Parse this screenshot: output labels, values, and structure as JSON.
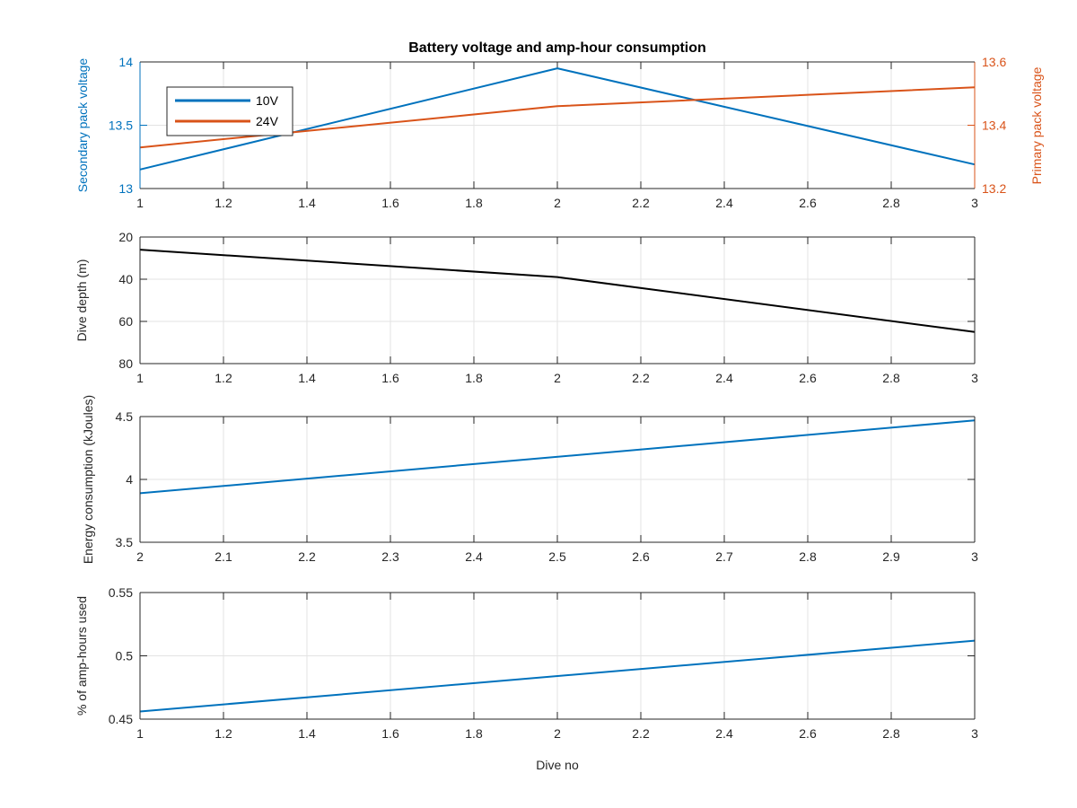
{
  "figure": {
    "title": "Battery voltage and amp-hour consumption",
    "xlabel": "Dive no"
  },
  "colors": {
    "blue": "#0072bd",
    "orange": "#d95319",
    "black": "#000000",
    "grid": "#e3e3e3",
    "axes": "#262626"
  },
  "chart_data": [
    {
      "type": "line",
      "title": "Battery voltage and amp-hour consumption",
      "xlim": [
        1,
        3
      ],
      "xticks": [
        "1",
        "1.2",
        "1.4",
        "1.6",
        "1.8",
        "2",
        "2.2",
        "2.4",
        "2.6",
        "2.8",
        "3"
      ],
      "grid": true,
      "legend": {
        "placement": "top-left",
        "entries": [
          "10V",
          "24V"
        ]
      },
      "y_left": {
        "label": "Secondary pack voltage",
        "lim": [
          13,
          14
        ],
        "ticks": [
          "13",
          "13.5",
          "14"
        ],
        "color": "#0072bd"
      },
      "y_right": {
        "label": "Primary pack voltage",
        "lim": [
          13.2,
          13.6
        ],
        "ticks": [
          "13.2",
          "13.4",
          "13.6"
        ],
        "color": "#d95319"
      },
      "series": [
        {
          "name": "10V",
          "axis": "left",
          "color": "#0072bd",
          "x": [
            1,
            2,
            3
          ],
          "y": [
            13.15,
            13.95,
            13.19
          ]
        },
        {
          "name": "24V",
          "axis": "right",
          "color": "#d95319",
          "x": [
            1,
            2,
            3
          ],
          "y": [
            13.33,
            13.46,
            13.52
          ]
        }
      ]
    },
    {
      "type": "line",
      "xlim": [
        1,
        3
      ],
      "xticks": [
        "1",
        "1.2",
        "1.4",
        "1.6",
        "1.8",
        "2",
        "2.2",
        "2.4",
        "2.6",
        "2.8",
        "3"
      ],
      "grid": true,
      "y_left": {
        "label": "Dive depth (m)",
        "lim": [
          20,
          80
        ],
        "reversed": true,
        "ticks": [
          "20",
          "40",
          "60",
          "80"
        ],
        "color": "#262626"
      },
      "series": [
        {
          "color": "#000000",
          "x": [
            1,
            2,
            3
          ],
          "y": [
            26,
            39,
            65
          ]
        }
      ]
    },
    {
      "type": "line",
      "xlim": [
        2,
        3
      ],
      "xticks": [
        "2",
        "2.1",
        "2.2",
        "2.3",
        "2.4",
        "2.5",
        "2.6",
        "2.7",
        "2.8",
        "2.9",
        "3"
      ],
      "grid": true,
      "y_left": {
        "label": "Energy consumption (kJoules)",
        "lim": [
          3.5,
          4.5
        ],
        "ticks": [
          "3.5",
          "4",
          "4.5"
        ],
        "color": "#262626"
      },
      "series": [
        {
          "color": "#0072bd",
          "x": [
            2,
            3
          ],
          "y": [
            3.89,
            4.47
          ]
        }
      ]
    },
    {
      "type": "line",
      "xlim": [
        1,
        3
      ],
      "xticks": [
        "1",
        "1.2",
        "1.4",
        "1.6",
        "1.8",
        "2",
        "2.2",
        "2.4",
        "2.6",
        "2.8",
        "3"
      ],
      "xlabel": "Dive no",
      "grid": true,
      "y_left": {
        "label": "% of amp-hours used",
        "lim": [
          0.45,
          0.55
        ],
        "ticks": [
          "0.45",
          "0.5",
          "0.55"
        ],
        "color": "#262626"
      },
      "series": [
        {
          "color": "#0072bd",
          "x": [
            1,
            3
          ],
          "y": [
            0.456,
            0.512
          ]
        }
      ]
    }
  ]
}
